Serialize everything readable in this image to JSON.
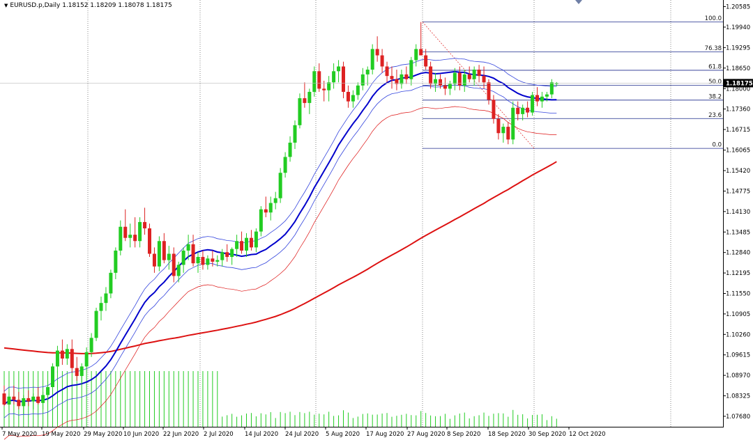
{
  "header": {
    "symbol_line": "EURUSD.p,Daily  1.18152 1.18209 1.18078 1.18175"
  },
  "price_axis": {
    "ticks": [
      "1.20585",
      "1.19940",
      "1.19295",
      "1.18650",
      "1.18000",
      "1.17360",
      "1.16715",
      "1.16065",
      "1.15420",
      "1.14775",
      "1.14130",
      "1.13485",
      "1.12840",
      "1.12195",
      "1.11550",
      "1.10905",
      "1.10260",
      "1.09615",
      "1.08970",
      "1.08325",
      "1.07680"
    ],
    "current_price": "1.18175",
    "current_price_bg": "#000000"
  },
  "date_axis": {
    "labels": [
      "7 May 2020",
      "19 May 2020",
      "29 May 2020",
      "10 Jun 2020",
      "22 Jun 2020",
      "2 Jul 2020",
      "14 Jul 2020",
      "24 Jul 2020",
      "5 Aug 2020",
      "17 Aug 2020",
      "27 Aug 2020",
      "8 Sep 2020",
      "18 Sep 2020",
      "30 Sep 2020",
      "12 Oct 2020"
    ]
  },
  "fibonacci": {
    "levels": [
      {
        "label": "100.0",
        "price": 1.201
      },
      {
        "label": "76.38",
        "price": 1.1916
      },
      {
        "label": "61.8",
        "price": 1.1858
      },
      {
        "label": "50.0",
        "price": 1.1811
      },
      {
        "label": "38.2",
        "price": 1.1764
      },
      {
        "label": "23.6",
        "price": 1.1706
      },
      {
        "label": "0.0",
        "price": 1.1612
      }
    ],
    "line_color": "#1c2a8c"
  },
  "colors": {
    "bull_candle": "#22cc22",
    "bear_candle": "#dd2222",
    "ma_fast": "#0000cc",
    "ma_band": "#3344dd",
    "ma_slow": "#dd1111",
    "volume": "#22cc22",
    "grid": "#555555"
  },
  "chart_data": {
    "type": "candlestick",
    "symbol": "EURUSD.p",
    "timeframe": "Daily",
    "last_bar": {
      "open": 1.18152,
      "high": 1.18209,
      "low": 1.18078,
      "close": 1.18175
    },
    "ylim": [
      1.0735,
      1.2075
    ],
    "x_start_date": "2020-05-04",
    "candles": [
      [
        1.084,
        1.0865,
        1.08,
        1.0805
      ],
      [
        1.0805,
        1.084,
        1.078,
        1.083
      ],
      [
        1.083,
        1.0865,
        1.0805,
        1.082
      ],
      [
        1.082,
        1.0845,
        1.079,
        1.08
      ],
      [
        1.08,
        1.0835,
        1.0775,
        1.0825
      ],
      [
        1.0825,
        1.085,
        1.08,
        1.0815
      ],
      [
        1.0815,
        1.084,
        1.079,
        1.083
      ],
      [
        1.083,
        1.086,
        1.0805,
        1.081
      ],
      [
        1.081,
        1.0845,
        1.079,
        1.0835
      ],
      [
        1.0835,
        1.088,
        1.0815,
        1.086
      ],
      [
        1.086,
        1.0935,
        1.0845,
        1.0925
      ],
      [
        1.0925,
        1.099,
        1.0905,
        1.0975
      ],
      [
        1.0975,
        1.101,
        1.093,
        1.095
      ],
      [
        1.095,
        1.0995,
        1.093,
        1.098
      ],
      [
        1.098,
        1.101,
        1.0905,
        1.092
      ],
      [
        1.092,
        1.0955,
        1.088,
        1.0895
      ],
      [
        1.0895,
        1.0935,
        1.087,
        1.0925
      ],
      [
        1.0925,
        1.0985,
        1.091,
        1.097
      ],
      [
        1.097,
        1.103,
        1.0955,
        1.1015
      ],
      [
        1.1015,
        1.111,
        1.1005,
        1.11
      ],
      [
        1.11,
        1.1145,
        1.107,
        1.1125
      ],
      [
        1.1125,
        1.1175,
        1.11,
        1.1155
      ],
      [
        1.1155,
        1.123,
        1.114,
        1.122
      ],
      [
        1.122,
        1.13,
        1.12,
        1.129
      ],
      [
        1.129,
        1.1385,
        1.1275,
        1.1365
      ],
      [
        1.1365,
        1.142,
        1.132,
        1.133
      ],
      [
        1.133,
        1.1375,
        1.13,
        1.134
      ],
      [
        1.134,
        1.1395,
        1.13,
        1.132
      ],
      [
        1.132,
        1.1395,
        1.13,
        1.138
      ],
      [
        1.138,
        1.1425,
        1.134,
        1.136
      ],
      [
        1.136,
        1.1375,
        1.127,
        1.128
      ],
      [
        1.128,
        1.13,
        1.122,
        1.124
      ],
      [
        1.124,
        1.1335,
        1.1225,
        1.132
      ],
      [
        1.132,
        1.1345,
        1.125,
        1.126
      ],
      [
        1.126,
        1.1305,
        1.123,
        1.128
      ],
      [
        1.128,
        1.13,
        1.119,
        1.121
      ],
      [
        1.121,
        1.1255,
        1.119,
        1.1245
      ],
      [
        1.1245,
        1.13,
        1.122,
        1.129
      ],
      [
        1.129,
        1.134,
        1.126,
        1.131
      ],
      [
        1.131,
        1.134,
        1.124,
        1.125
      ],
      [
        1.125,
        1.1285,
        1.122,
        1.127
      ],
      [
        1.127,
        1.129,
        1.123,
        1.1245
      ],
      [
        1.1245,
        1.1275,
        1.123,
        1.1265
      ],
      [
        1.1265,
        1.129,
        1.124,
        1.1255
      ],
      [
        1.1255,
        1.1275,
        1.124,
        1.126
      ],
      [
        1.126,
        1.1295,
        1.124,
        1.1285
      ],
      [
        1.1285,
        1.131,
        1.1255,
        1.127
      ],
      [
        1.127,
        1.13,
        1.1245,
        1.1295
      ],
      [
        1.1295,
        1.134,
        1.127,
        1.132
      ],
      [
        1.132,
        1.135,
        1.128,
        1.129
      ],
      [
        1.129,
        1.1345,
        1.127,
        1.133
      ],
      [
        1.133,
        1.1355,
        1.129,
        1.13
      ],
      [
        1.13,
        1.136,
        1.1285,
        1.135
      ],
      [
        1.135,
        1.143,
        1.1335,
        1.142
      ],
      [
        1.142,
        1.146,
        1.1395,
        1.141
      ],
      [
        1.141,
        1.146,
        1.1385,
        1.144
      ],
      [
        1.144,
        1.1475,
        1.142,
        1.1455
      ],
      [
        1.1455,
        1.155,
        1.144,
        1.1535
      ],
      [
        1.1535,
        1.16,
        1.152,
        1.1585
      ],
      [
        1.1585,
        1.165,
        1.157,
        1.163
      ],
      [
        1.163,
        1.17,
        1.161,
        1.1685
      ],
      [
        1.1685,
        1.1785,
        1.1675,
        1.177
      ],
      [
        1.177,
        1.182,
        1.174,
        1.1755
      ],
      [
        1.1755,
        1.18,
        1.172,
        1.179
      ],
      [
        1.179,
        1.187,
        1.1775,
        1.1855
      ],
      [
        1.1855,
        1.188,
        1.179,
        1.18
      ],
      [
        1.18,
        1.1825,
        1.176,
        1.1795
      ],
      [
        1.1795,
        1.184,
        1.176,
        1.182
      ],
      [
        1.182,
        1.188,
        1.18,
        1.1855
      ],
      [
        1.1855,
        1.189,
        1.182,
        1.187
      ],
      [
        1.187,
        1.1885,
        1.177,
        1.179
      ],
      [
        1.179,
        1.181,
        1.174,
        1.176
      ],
      [
        1.176,
        1.1795,
        1.174,
        1.178
      ],
      [
        1.178,
        1.182,
        1.1765,
        1.181
      ],
      [
        1.181,
        1.1865,
        1.1795,
        1.1845
      ],
      [
        1.1845,
        1.187,
        1.181,
        1.186
      ],
      [
        1.186,
        1.194,
        1.1845,
        1.1925
      ],
      [
        1.1925,
        1.1965,
        1.1885,
        1.1905
      ],
      [
        1.1905,
        1.1925,
        1.185,
        1.187
      ],
      [
        1.187,
        1.1885,
        1.182,
        1.184
      ],
      [
        1.184,
        1.187,
        1.18,
        1.183
      ],
      [
        1.183,
        1.186,
        1.1795,
        1.1815
      ],
      [
        1.1815,
        1.186,
        1.18,
        1.1845
      ],
      [
        1.1845,
        1.187,
        1.1815,
        1.183
      ],
      [
        1.183,
        1.19,
        1.181,
        1.189
      ],
      [
        1.189,
        1.194,
        1.187,
        1.1925
      ],
      [
        1.1925,
        1.201,
        1.1905,
        1.1905
      ],
      [
        1.1905,
        1.1925,
        1.186,
        1.187
      ],
      [
        1.187,
        1.1885,
        1.18,
        1.1815
      ],
      [
        1.1815,
        1.185,
        1.179,
        1.183
      ],
      [
        1.183,
        1.1845,
        1.18,
        1.181
      ],
      [
        1.181,
        1.1835,
        1.178,
        1.18
      ],
      [
        1.18,
        1.1825,
        1.178,
        1.1815
      ],
      [
        1.1815,
        1.1865,
        1.1795,
        1.185
      ],
      [
        1.185,
        1.187,
        1.1795,
        1.181
      ],
      [
        1.181,
        1.186,
        1.179,
        1.1845
      ],
      [
        1.1845,
        1.187,
        1.182,
        1.183
      ],
      [
        1.183,
        1.187,
        1.181,
        1.186
      ],
      [
        1.186,
        1.1875,
        1.182,
        1.184
      ],
      [
        1.184,
        1.187,
        1.18,
        1.182
      ],
      [
        1.182,
        1.183,
        1.175,
        1.1765
      ],
      [
        1.1765,
        1.178,
        1.169,
        1.1705
      ],
      [
        1.1705,
        1.172,
        1.164,
        1.166
      ],
      [
        1.166,
        1.169,
        1.163,
        1.168
      ],
      [
        1.168,
        1.1695,
        1.1625,
        1.164
      ],
      [
        1.164,
        1.176,
        1.1625,
        1.174
      ],
      [
        1.174,
        1.176,
        1.17,
        1.172
      ],
      [
        1.172,
        1.175,
        1.17,
        1.174
      ],
      [
        1.174,
        1.176,
        1.171,
        1.1725
      ],
      [
        1.1725,
        1.179,
        1.1715,
        1.178
      ],
      [
        1.178,
        1.1805,
        1.1745,
        1.176
      ],
      [
        1.176,
        1.179,
        1.174,
        1.1775
      ],
      [
        1.1775,
        1.179,
        1.176,
        1.1782
      ],
      [
        1.1782,
        1.183,
        1.177,
        1.182
      ],
      [
        1.18152,
        1.18209,
        1.18078,
        1.18175
      ]
    ],
    "series": [
      {
        "name": "",
        "values": []
      }
    ]
  }
}
